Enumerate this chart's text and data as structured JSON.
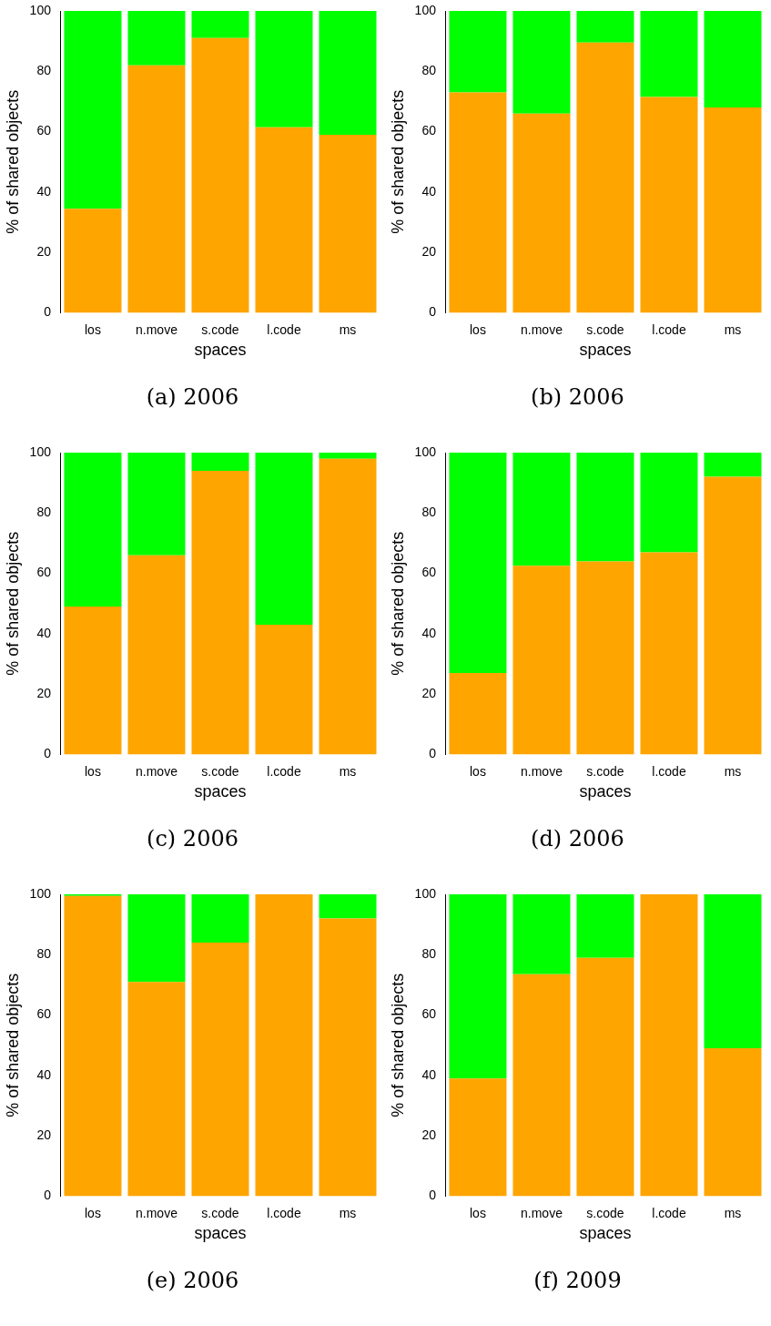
{
  "chart_data": [
    {
      "type": "bar",
      "title": "(a) 2006",
      "xlabel": "spaces",
      "ylabel": "% of shared objects",
      "categories": [
        "los",
        "n.move",
        "s.code",
        "l.code",
        "ms"
      ],
      "stacked": true,
      "ylim": [
        0,
        100
      ],
      "yticks": [
        0,
        20,
        40,
        60,
        80,
        100
      ],
      "grid": false,
      "legend": false,
      "series": [
        {
          "color": "#ffa500",
          "values": [
            34.5,
            82,
            91,
            61.5,
            59
          ]
        },
        {
          "color": "#00ff00",
          "values": [
            65.5,
            18,
            9,
            38.5,
            41
          ]
        }
      ]
    },
    {
      "type": "bar",
      "title": "(b) 2006",
      "xlabel": "spaces",
      "ylabel": "% of shared objects",
      "categories": [
        "los",
        "n.move",
        "s.code",
        "l.code",
        "ms"
      ],
      "stacked": true,
      "ylim": [
        0,
        100
      ],
      "yticks": [
        0,
        20,
        40,
        60,
        80,
        100
      ],
      "grid": false,
      "legend": false,
      "series": [
        {
          "color": "#ffa500",
          "values": [
            73,
            66,
            89.5,
            71.5,
            68
          ]
        },
        {
          "color": "#00ff00",
          "values": [
            27,
            34,
            10.5,
            28.5,
            32
          ]
        }
      ]
    },
    {
      "type": "bar",
      "title": "(c) 2006",
      "xlabel": "spaces",
      "ylabel": "% of shared objects",
      "categories": [
        "los",
        "n.move",
        "s.code",
        "l.code",
        "ms"
      ],
      "stacked": true,
      "ylim": [
        0,
        100
      ],
      "yticks": [
        0,
        20,
        40,
        60,
        80,
        100
      ],
      "grid": false,
      "legend": false,
      "series": [
        {
          "color": "#ffa500",
          "values": [
            49,
            66,
            94,
            43,
            98
          ]
        },
        {
          "color": "#00ff00",
          "values": [
            51,
            34,
            6,
            57,
            2
          ]
        }
      ]
    },
    {
      "type": "bar",
      "title": "(d) 2006",
      "xlabel": "spaces",
      "ylabel": "% of shared objects",
      "categories": [
        "los",
        "n.move",
        "s.code",
        "l.code",
        "ms"
      ],
      "stacked": true,
      "ylim": [
        0,
        100
      ],
      "yticks": [
        0,
        20,
        40,
        60,
        80,
        100
      ],
      "grid": false,
      "legend": false,
      "series": [
        {
          "color": "#ffa500",
          "values": [
            27,
            62.5,
            64,
            67,
            92
          ]
        },
        {
          "color": "#00ff00",
          "values": [
            73,
            37.5,
            36,
            33,
            8
          ]
        }
      ]
    },
    {
      "type": "bar",
      "title": "(e) 2006",
      "xlabel": "spaces",
      "ylabel": "% of shared objects",
      "categories": [
        "los",
        "n.move",
        "s.code",
        "l.code",
        "ms"
      ],
      "stacked": true,
      "ylim": [
        0,
        100
      ],
      "yticks": [
        0,
        20,
        40,
        60,
        80,
        100
      ],
      "grid": false,
      "legend": false,
      "series": [
        {
          "color": "#ffa500",
          "values": [
            99.5,
            71,
            84,
            100,
            92
          ]
        },
        {
          "color": "#00ff00",
          "values": [
            0.5,
            29,
            16,
            0,
            8
          ]
        }
      ]
    },
    {
      "type": "bar",
      "title": "(f) 2009",
      "xlabel": "spaces",
      "ylabel": "% of shared objects",
      "categories": [
        "los",
        "n.move",
        "s.code",
        "l.code",
        "ms"
      ],
      "stacked": true,
      "ylim": [
        0,
        100
      ],
      "yticks": [
        0,
        20,
        40,
        60,
        80,
        100
      ],
      "grid": false,
      "legend": false,
      "series": [
        {
          "color": "#ffa500",
          "values": [
            39,
            73.5,
            79,
            100,
            49
          ]
        },
        {
          "color": "#00ff00",
          "values": [
            61,
            26.5,
            21,
            0,
            51
          ]
        }
      ]
    }
  ]
}
